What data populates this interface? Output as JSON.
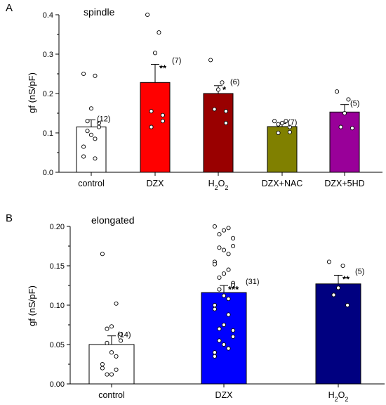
{
  "chart_data": [
    {
      "type": "bar",
      "panel_label": "A",
      "title": "spindle",
      "ylabel": "gf (nS/pF)",
      "ylim": [
        0,
        0.4
      ],
      "yticks": [
        "0.0",
        "0.1",
        "0.2",
        "0.3",
        "0.4"
      ],
      "categories": [
        "control",
        "DZX",
        "H2O2",
        "DZX+NAC",
        "DZX+5HD"
      ],
      "values": [
        0.115,
        0.228,
        0.2,
        0.116,
        0.153
      ],
      "errors": [
        0.018,
        0.046,
        0.02,
        0.008,
        0.019
      ],
      "n_labels": [
        "(12)",
        "(7)",
        "(6)",
        "(7)",
        "(5)"
      ],
      "significance": [
        "",
        "**",
        "*",
        "",
        ""
      ],
      "colors": [
        "#ffffff",
        "#ff0000",
        "#990000",
        "#808000",
        "#990099"
      ],
      "points": [
        [
          0.25,
          0.245,
          0.162,
          0.13,
          0.125,
          0.115,
          0.105,
          0.095,
          0.085,
          0.065,
          0.04,
          0.035
        ],
        [
          0.4,
          0.355,
          0.303,
          0.155,
          0.145,
          0.13,
          0.115
        ],
        [
          0.285,
          0.228,
          0.21,
          0.16,
          0.155,
          0.125
        ],
        [
          0.13,
          0.13,
          0.125,
          0.122,
          0.115,
          0.102,
          0.1
        ],
        [
          0.205,
          0.185,
          0.15,
          0.115,
          0.112
        ]
      ]
    },
    {
      "type": "bar",
      "panel_label": "B",
      "title": "elongated",
      "ylabel": "gf (nS/pF)",
      "ylim": [
        0,
        0.2
      ],
      "yticks": [
        "0.00",
        "0.05",
        "0.10",
        "0.15",
        "0.20"
      ],
      "categories": [
        "control",
        "DZX",
        "H2O2"
      ],
      "values": [
        0.05,
        0.116,
        0.127
      ],
      "errors": [
        0.011,
        0.009,
        0.011
      ],
      "n_labels": [
        "(14)",
        "(31)",
        "(5)"
      ],
      "significance": [
        "",
        "***",
        "**"
      ],
      "colors": [
        "#ffffff",
        "#0000ff",
        "#000080"
      ],
      "points": [
        [
          0.165,
          0.102,
          0.073,
          0.07,
          0.063,
          0.055,
          0.052,
          0.04,
          0.035,
          0.025,
          0.02,
          0.018,
          0.012,
          0.012
        ],
        [
          0.2,
          0.198,
          0.195,
          0.19,
          0.185,
          0.175,
          0.173,
          0.17,
          0.165,
          0.155,
          0.152,
          0.145,
          0.14,
          0.135,
          0.128,
          0.125,
          0.12,
          0.112,
          0.108,
          0.1,
          0.095,
          0.088,
          0.075,
          0.07,
          0.068,
          0.06,
          0.055,
          0.05,
          0.045,
          0.04,
          0.035
        ],
        [
          0.155,
          0.15,
          0.122,
          0.113,
          0.1
        ]
      ]
    }
  ]
}
